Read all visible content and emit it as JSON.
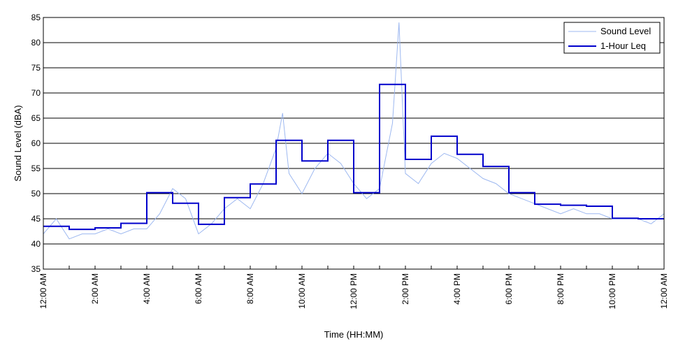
{
  "chart_data": {
    "type": "line",
    "xlabel": "Time (HH:MM)",
    "ylabel": "Sound Level (dBA)",
    "xlim": [
      0,
      24
    ],
    "ylim": [
      35,
      85
    ],
    "y_ticks": [
      35,
      40,
      45,
      50,
      55,
      60,
      65,
      70,
      75,
      80,
      85
    ],
    "x_ticks": [
      {
        "hour": 0,
        "label": "12:00 AM"
      },
      {
        "hour": 2,
        "label": "2:00 AM"
      },
      {
        "hour": 4,
        "label": "4:00 AM"
      },
      {
        "hour": 6,
        "label": "6:00 AM"
      },
      {
        "hour": 8,
        "label": "8:00 AM"
      },
      {
        "hour": 10,
        "label": "10:00 AM"
      },
      {
        "hour": 12,
        "label": "12:00 PM"
      },
      {
        "hour": 14,
        "label": "2:00 PM"
      },
      {
        "hour": 16,
        "label": "4:00 PM"
      },
      {
        "hour": 18,
        "label": "6:00 PM"
      },
      {
        "hour": 20,
        "label": "8:00 PM"
      },
      {
        "hour": 22,
        "label": "10:00 PM"
      },
      {
        "hour": 24,
        "label": "12:00 AM"
      }
    ],
    "grid": "horizontal",
    "legend_position": "top-right",
    "series": [
      {
        "name": "Sound Level",
        "style": "thin-line",
        "color": "#9db8f0",
        "x": [
          0,
          0.5,
          1,
          1.5,
          2,
          2.5,
          3,
          3.5,
          4,
          4.5,
          5,
          5.5,
          6,
          6.5,
          7,
          7.5,
          8,
          8.5,
          9,
          9.25,
          9.5,
          10,
          10.5,
          11,
          11.5,
          12,
          12.5,
          13,
          13.5,
          13.75,
          14,
          14.5,
          15,
          15.5,
          16,
          16.5,
          17,
          17.5,
          18,
          18.5,
          19,
          19.5,
          20,
          20.5,
          21,
          21.5,
          22,
          22.5,
          23,
          23.5,
          24
        ],
        "values": [
          42,
          45,
          41,
          42,
          42,
          43,
          42,
          43,
          43,
          46,
          51,
          49,
          42,
          44,
          47,
          49,
          47,
          52,
          59,
          66,
          54,
          50,
          55,
          58,
          56,
          52,
          49,
          51,
          64,
          84,
          54,
          52,
          56,
          58,
          57,
          55,
          53,
          52,
          50,
          49,
          48,
          47,
          46,
          47,
          46,
          46,
          45,
          45,
          45,
          44,
          46
        ]
      },
      {
        "name": "1-Hour Leq",
        "style": "step",
        "color": "#0000cc",
        "hours": [
          0,
          1,
          2,
          3,
          4,
          5,
          6,
          7,
          8,
          9,
          10,
          11,
          12,
          13,
          14,
          15,
          16,
          17,
          18,
          19,
          20,
          21,
          22,
          23
        ],
        "values": [
          43.5,
          42.9,
          43.2,
          44.1,
          50.2,
          48.1,
          43.9,
          49.2,
          51.9,
          60.6,
          56.5,
          60.6,
          50.2,
          71.7,
          56.8,
          61.4,
          57.8,
          55.4,
          50.2,
          47.9,
          47.7,
          47.5,
          45.1,
          45.0
        ]
      }
    ]
  }
}
